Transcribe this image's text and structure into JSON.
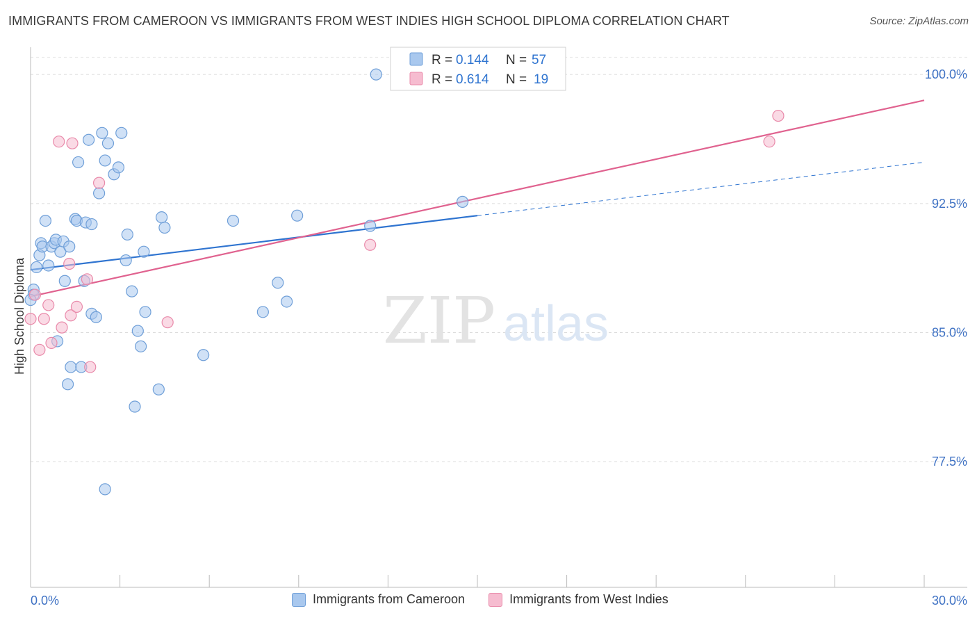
{
  "header": {
    "title": "IMMIGRANTS FROM CAMEROON VS IMMIGRANTS FROM WEST INDIES HIGH SCHOOL DIPLOMA CORRELATION CHART",
    "source": "Source: ZipAtlas.com"
  },
  "watermark": {
    "zip": "ZIP",
    "atlas": "atlas"
  },
  "chart_data": {
    "type": "scatter",
    "ylabel": "High School Diploma",
    "xlim": [
      0,
      30
    ],
    "ylim": [
      70.2,
      101.5
    ],
    "x_tick_labels": [
      "0.0%",
      "30.0%"
    ],
    "y_ticks": [
      77.5,
      85.0,
      92.5,
      100.0
    ],
    "y_tick_labels": [
      "77.5%",
      "85.0%",
      "92.5%",
      "100.0%"
    ],
    "grid": "horizontal dashed",
    "legend_top": [
      {
        "r_label": "R = ",
        "r_value": "0.144",
        "n_label": "N = ",
        "n_value": "57"
      },
      {
        "r_label": "R = ",
        "r_value": "0.614",
        "n_label": "N = ",
        "n_value": "19"
      }
    ],
    "series": [
      {
        "name": "Immigrants from Cameroon",
        "color": "#a9c8ee",
        "stroke": "#6f9fd8",
        "line_color": "#2f74d0",
        "trend": {
          "x0": 0,
          "y0": 88.65,
          "x1": 15.0,
          "y1": 91.8,
          "dash_to_x": 30,
          "dash_to_y": 94.9
        },
        "points": [
          [
            0.1,
            87.5
          ],
          [
            0.1,
            87.2
          ],
          [
            0.2,
            88.8
          ],
          [
            0.3,
            89.5
          ],
          [
            0.35,
            90.2
          ],
          [
            0.4,
            90.0
          ],
          [
            0.5,
            91.5
          ],
          [
            0.6,
            88.9
          ],
          [
            0.7,
            90.0
          ],
          [
            0.8,
            90.2
          ],
          [
            0.85,
            90.4
          ],
          [
            0.9,
            84.5
          ],
          [
            1.0,
            89.7
          ],
          [
            1.1,
            90.3
          ],
          [
            1.15,
            88.0
          ],
          [
            1.25,
            82.0
          ],
          [
            1.3,
            90.0
          ],
          [
            1.35,
            83.0
          ],
          [
            1.5,
            91.6
          ],
          [
            1.55,
            91.5
          ],
          [
            1.6,
            94.9
          ],
          [
            1.7,
            83.0
          ],
          [
            1.8,
            88.0
          ],
          [
            1.85,
            91.4
          ],
          [
            1.95,
            96.2
          ],
          [
            2.05,
            91.3
          ],
          [
            2.05,
            86.1
          ],
          [
            2.2,
            85.9
          ],
          [
            2.3,
            93.1
          ],
          [
            2.4,
            96.6
          ],
          [
            2.5,
            95.0
          ],
          [
            2.6,
            96.0
          ],
          [
            2.5,
            75.9
          ],
          [
            2.8,
            94.2
          ],
          [
            2.95,
            94.6
          ],
          [
            3.05,
            96.6
          ],
          [
            3.2,
            89.2
          ],
          [
            3.25,
            90.7
          ],
          [
            3.4,
            87.4
          ],
          [
            3.5,
            80.7
          ],
          [
            3.6,
            85.1
          ],
          [
            3.7,
            84.2
          ],
          [
            3.8,
            89.7
          ],
          [
            3.85,
            86.2
          ],
          [
            4.3,
            81.7
          ],
          [
            4.4,
            91.7
          ],
          [
            4.5,
            91.1
          ],
          [
            5.8,
            83.7
          ],
          [
            6.8,
            91.5
          ],
          [
            7.8,
            86.2
          ],
          [
            8.3,
            87.9
          ],
          [
            8.6,
            86.8
          ],
          [
            8.95,
            91.8
          ],
          [
            11.4,
            91.2
          ],
          [
            11.6,
            100.0
          ],
          [
            14.5,
            92.6
          ],
          [
            0.0,
            86.9
          ]
        ]
      },
      {
        "name": "Immigrants from West Indies",
        "color": "#f6bcd0",
        "stroke": "#e98aaa",
        "line_color": "#e0628f",
        "trend": {
          "x0": 0,
          "y0": 87.1,
          "x1": 30,
          "y1": 98.5
        },
        "points": [
          [
            0.0,
            85.8
          ],
          [
            0.15,
            87.2
          ],
          [
            0.3,
            84.0
          ],
          [
            0.45,
            85.8
          ],
          [
            0.6,
            86.6
          ],
          [
            0.7,
            84.4
          ],
          [
            0.95,
            96.1
          ],
          [
            1.05,
            85.3
          ],
          [
            1.3,
            89.0
          ],
          [
            1.35,
            86.0
          ],
          [
            1.4,
            96.0
          ],
          [
            1.55,
            86.5
          ],
          [
            1.9,
            88.1
          ],
          [
            2.0,
            83.0
          ],
          [
            2.3,
            93.7
          ],
          [
            4.6,
            85.6
          ],
          [
            11.4,
            90.1
          ],
          [
            24.8,
            96.1
          ],
          [
            25.1,
            97.6
          ]
        ]
      }
    ]
  }
}
